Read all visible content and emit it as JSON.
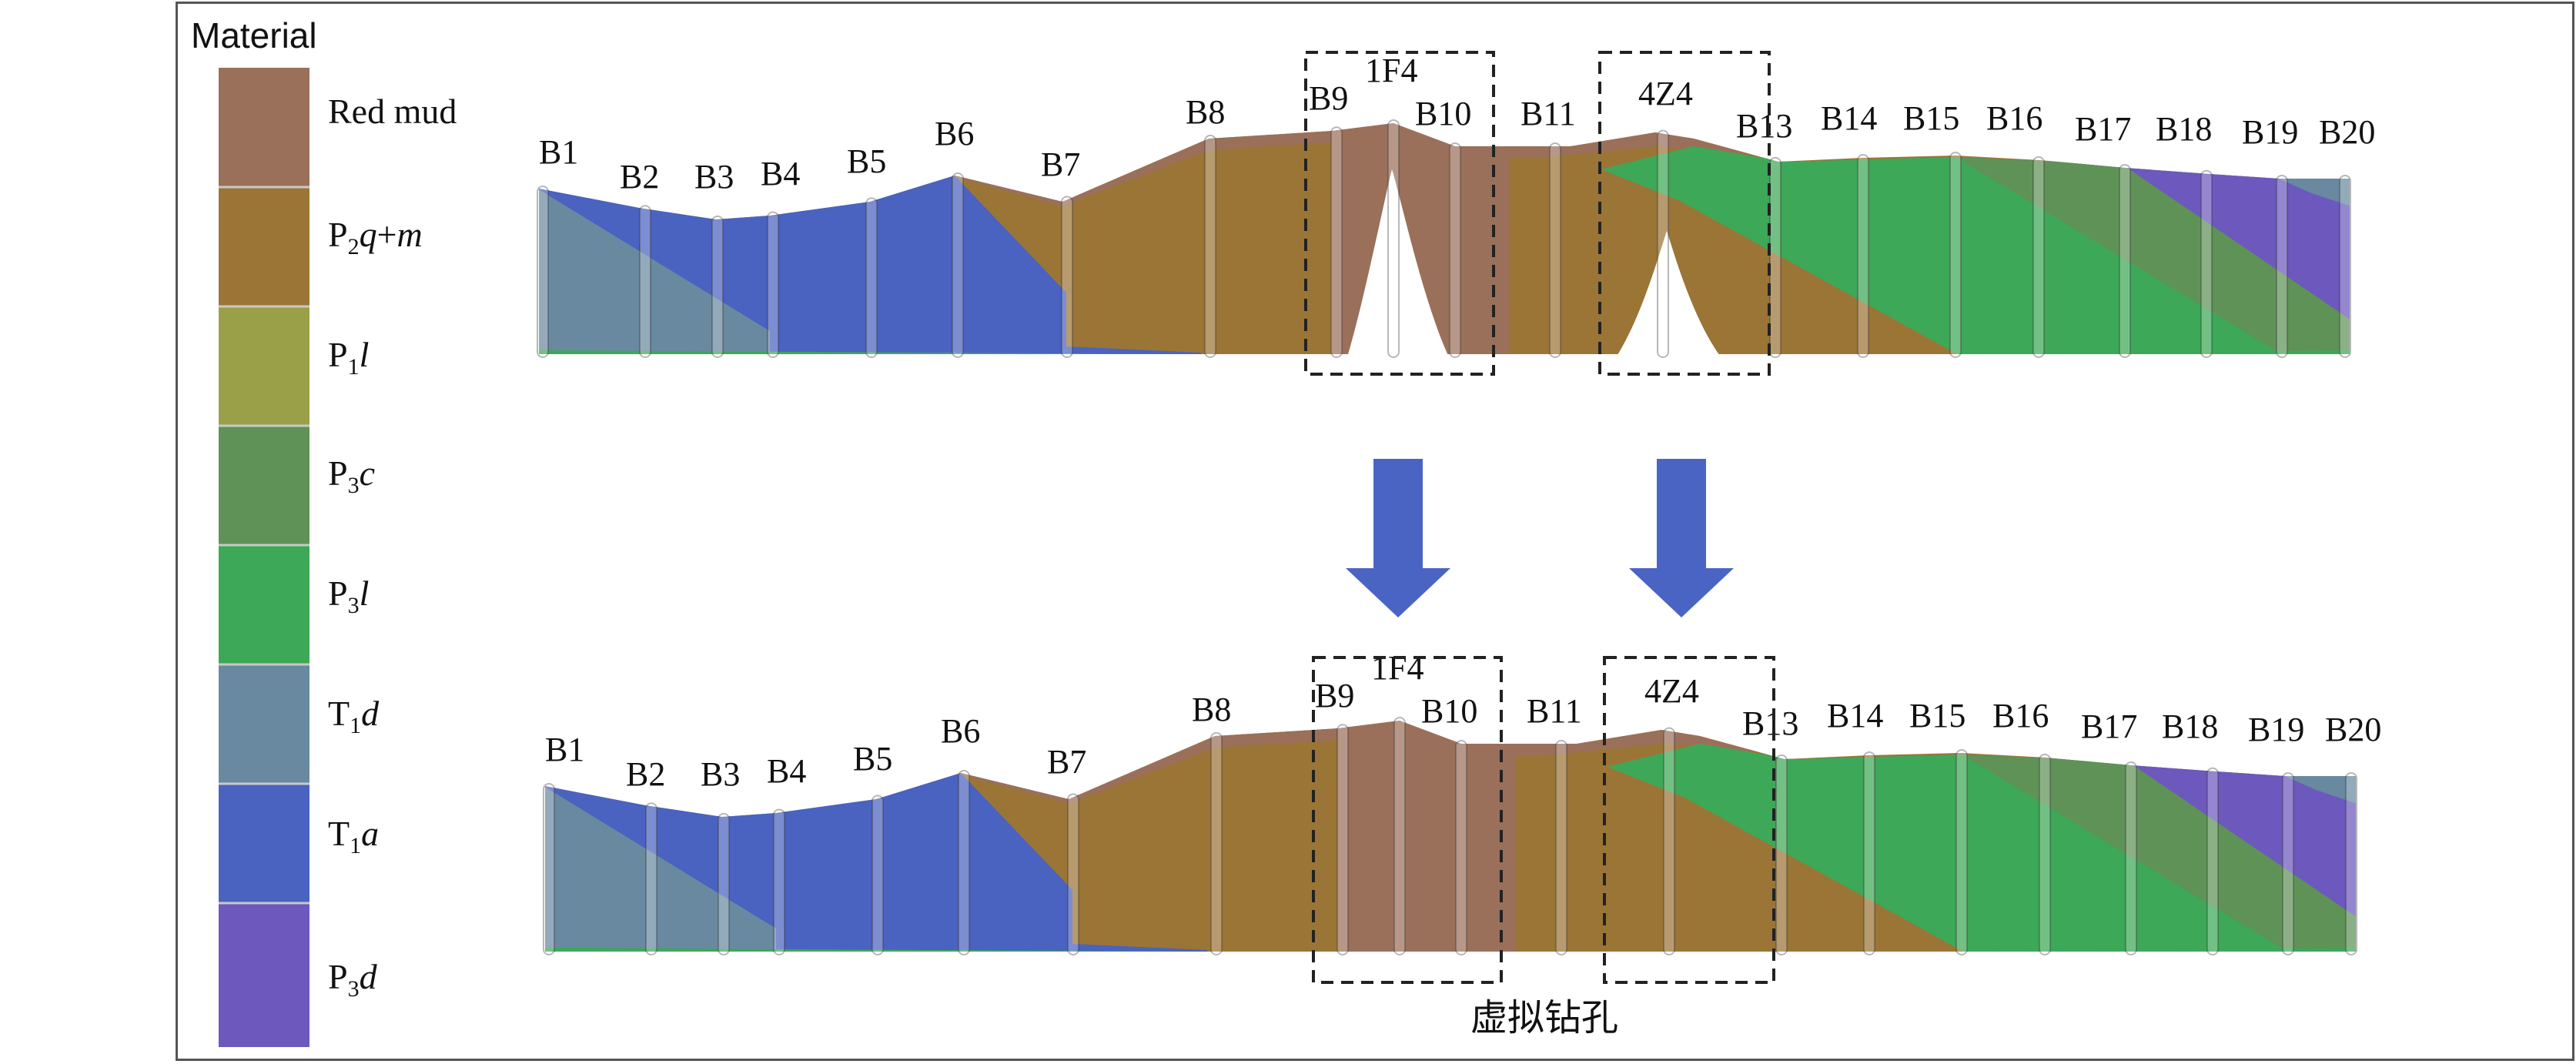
{
  "legend": {
    "title": "Material",
    "items": [
      {
        "base": "Red mud",
        "sub": "",
        "rest": "",
        "color": "#9a705a"
      },
      {
        "base": "P",
        "sub": "2",
        "rest": "q+m",
        "italic": "q",
        "color": "#9b7536"
      },
      {
        "base": "P",
        "sub": "1",
        "rest": "l",
        "italic": "l",
        "color": "#9aa048"
      },
      {
        "base": "P",
        "sub": "3",
        "rest": "c",
        "italic": "c",
        "color": "#5f9257"
      },
      {
        "base": "P",
        "sub": "3",
        "rest": "l",
        "italic": "l",
        "color": "#3da857"
      },
      {
        "base": "T",
        "sub": "1",
        "rest": "d",
        "italic": "d",
        "color": "#6889a0"
      },
      {
        "base": "T",
        "sub": "1",
        "rest": "a",
        "italic": "a",
        "color": "#4a62c0"
      },
      {
        "base": "P",
        "sub": "3",
        "rest": "d",
        "italic": "d",
        "color": "#6d58be"
      }
    ]
  },
  "top_section": {
    "boreholes": [
      "B1",
      "B2",
      "B3",
      "B4",
      "B5",
      "B6",
      "B7",
      "B8",
      "B9",
      "1F4",
      "B10",
      "B11",
      "4Z4",
      "B13",
      "B14",
      "B15",
      "B16",
      "B17",
      "B18",
      "B19",
      "B20"
    ]
  },
  "bottom_section": {
    "boreholes": [
      "B1",
      "B2",
      "B3",
      "B4",
      "B5",
      "B6",
      "B7",
      "B8",
      "B9",
      "1F4",
      "B10",
      "B11",
      "4Z4",
      "B13",
      "B14",
      "B15",
      "B16",
      "B17",
      "B18",
      "B19",
      "B20"
    ]
  },
  "caption": "虚拟钻孔",
  "arrow_color": "#4a64c4"
}
